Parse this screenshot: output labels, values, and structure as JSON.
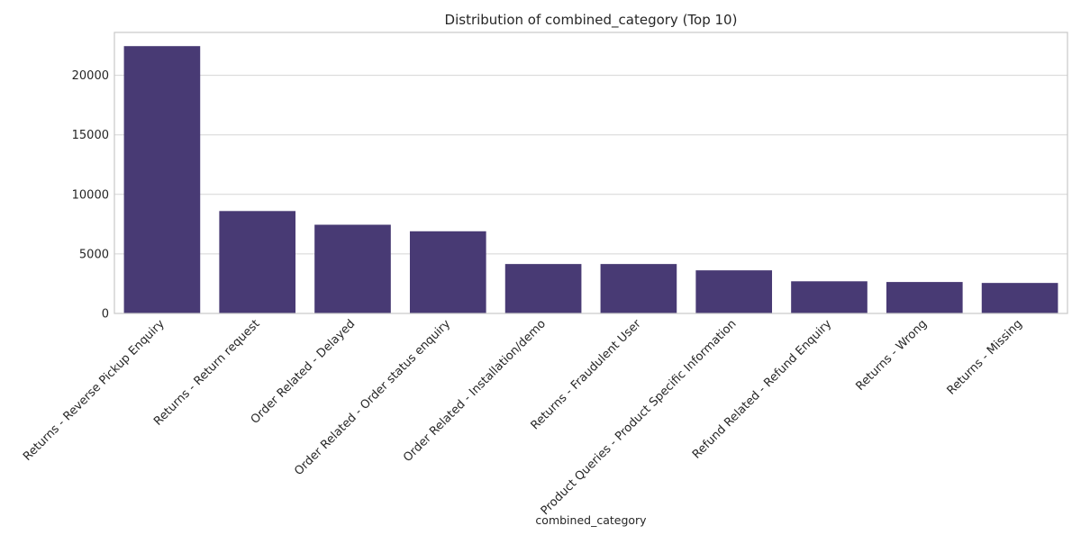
{
  "chart_data": {
    "type": "bar",
    "title": "Distribution of combined_category (Top 10)",
    "xlabel": "combined_category",
    "ylabel": "",
    "categories": [
      "Returns - Reverse Pickup Enquiry",
      "Returns - Return request",
      "Order Related - Delayed",
      "Order Related - Order status enquiry",
      "Order Related - Installation/demo",
      "Returns - Fraudulent User",
      "Product Queries - Product Specific Information",
      "Refund Related - Refund Enquiry",
      "Returns - Wrong",
      "Returns - Missing"
    ],
    "values": [
      22450,
      8600,
      7450,
      6900,
      4150,
      4150,
      3620,
      2700,
      2640,
      2560
    ],
    "ylim": [
      0,
      23600
    ],
    "yticks": [
      0,
      5000,
      10000,
      15000,
      20000
    ],
    "grid": true,
    "bar_color": "#483a74",
    "grid_color": "#d5d5d5",
    "frame_color": "#c8c8c8"
  }
}
